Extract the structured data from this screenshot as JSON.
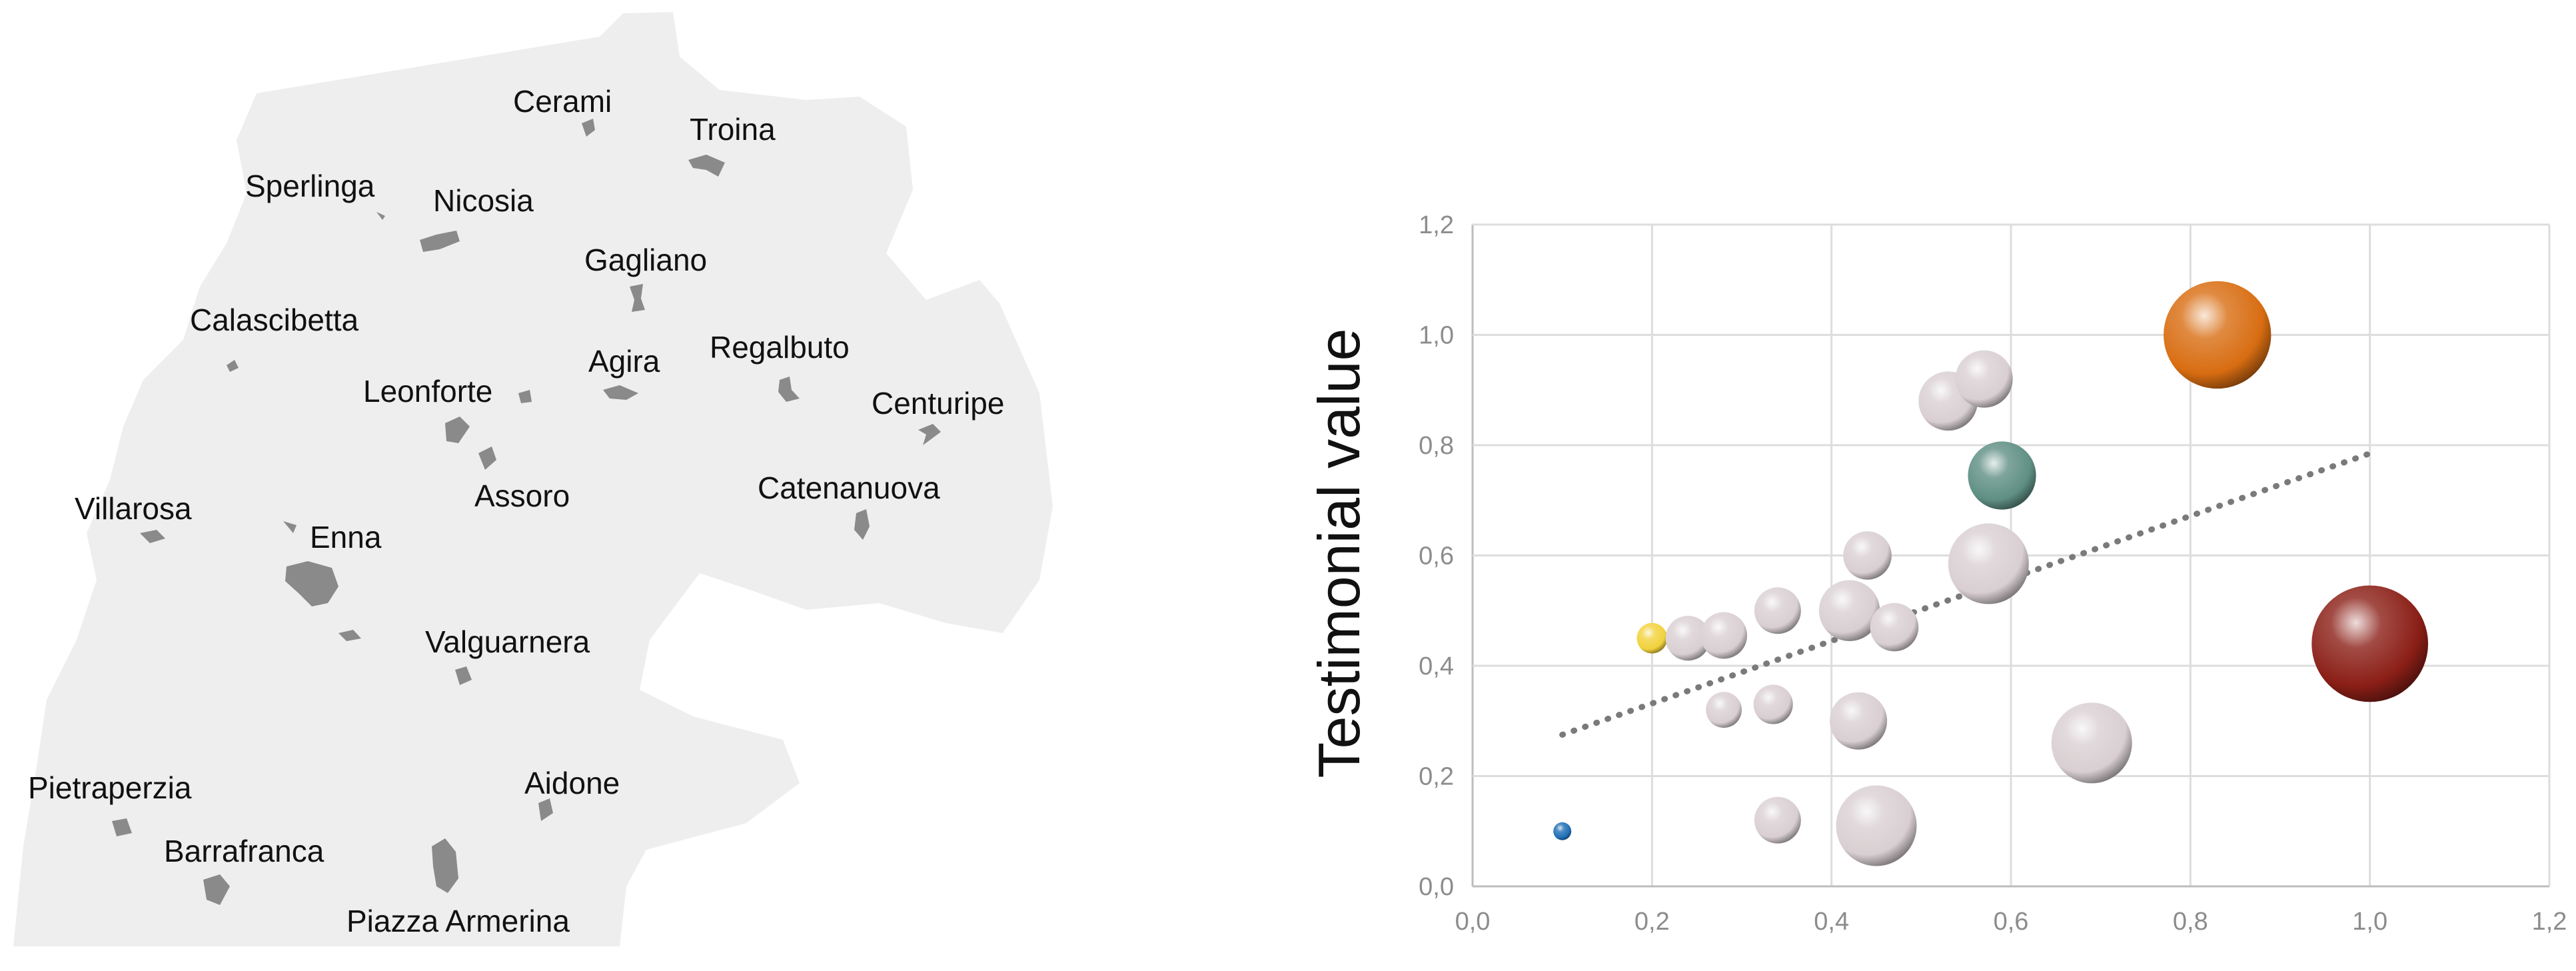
{
  "map": {
    "towns": [
      {
        "name": "Cerami"
      },
      {
        "name": "Troina"
      },
      {
        "name": "Sperlinga"
      },
      {
        "name": "Nicosia"
      },
      {
        "name": "Gagliano"
      },
      {
        "name": "Calascibetta"
      },
      {
        "name": "Agira"
      },
      {
        "name": "Regalbuto"
      },
      {
        "name": "Leonforte"
      },
      {
        "name": "Centuripe"
      },
      {
        "name": "Assoro"
      },
      {
        "name": "Catenanuova"
      },
      {
        "name": "Villarosa"
      },
      {
        "name": "Enna"
      },
      {
        "name": "Valguarnera"
      },
      {
        "name": "Pietraperzia"
      },
      {
        "name": "Aidone"
      },
      {
        "name": "Barrafranca"
      },
      {
        "name": "Piazza Armerina"
      }
    ],
    "colors": {
      "region": "#eeeeee",
      "settlement": "#8a8a8a"
    }
  },
  "chart_data": {
    "type": "bubble",
    "ylabel": "Testimonial value",
    "xlabel": "",
    "xlim": [
      0.0,
      1.2
    ],
    "ylim": [
      0.0,
      1.2
    ],
    "xticks": [
      "0,0",
      "0,2",
      "0,4",
      "0,6",
      "0,8",
      "1,0",
      "1,2"
    ],
    "yticks": [
      "0,0",
      "0,2",
      "0,4",
      "0,6",
      "0,8",
      "1,0",
      "1,2"
    ],
    "grid": true,
    "points": [
      {
        "x": 0.1,
        "y": 0.1,
        "size": 0.1,
        "color": "#1f6fb5"
      },
      {
        "x": 0.2,
        "y": 0.45,
        "size": 0.17,
        "color": "#f2d23c"
      },
      {
        "x": 0.24,
        "y": 0.45,
        "size": 0.25,
        "color": "#d9cfd2"
      },
      {
        "x": 0.28,
        "y": 0.455,
        "size": 0.26,
        "color": "#d9cfd2"
      },
      {
        "x": 0.28,
        "y": 0.32,
        "size": 0.2,
        "color": "#d9cfd2"
      },
      {
        "x": 0.335,
        "y": 0.33,
        "size": 0.22,
        "color": "#d9cfd2"
      },
      {
        "x": 0.34,
        "y": 0.5,
        "size": 0.26,
        "color": "#d9cfd2"
      },
      {
        "x": 0.34,
        "y": 0.12,
        "size": 0.26,
        "color": "#d9cfd2"
      },
      {
        "x": 0.42,
        "y": 0.5,
        "size": 0.34,
        "color": "#d9cfd2"
      },
      {
        "x": 0.43,
        "y": 0.3,
        "size": 0.32,
        "color": "#d9cfd2"
      },
      {
        "x": 0.44,
        "y": 0.6,
        "size": 0.27,
        "color": "#d9cfd2"
      },
      {
        "x": 0.47,
        "y": 0.47,
        "size": 0.27,
        "color": "#d9cfd2"
      },
      {
        "x": 0.45,
        "y": 0.11,
        "size": 0.45,
        "color": "#d9cfd2"
      },
      {
        "x": 0.53,
        "y": 0.88,
        "size": 0.33,
        "color": "#d9cfd2"
      },
      {
        "x": 0.57,
        "y": 0.92,
        "size": 0.32,
        "color": "#d9cfd2"
      },
      {
        "x": 0.575,
        "y": 0.585,
        "size": 0.45,
        "color": "#d9cfd2"
      },
      {
        "x": 0.59,
        "y": 0.745,
        "size": 0.38,
        "color": "#5f8f83"
      },
      {
        "x": 0.69,
        "y": 0.26,
        "size": 0.45,
        "color": "#d9cfd2"
      },
      {
        "x": 0.83,
        "y": 1.0,
        "size": 0.6,
        "color": "#d86d12"
      },
      {
        "x": 1.0,
        "y": 0.44,
        "size": 0.65,
        "color": "#8b1f17"
      }
    ],
    "trendline": {
      "x": [
        0.1,
        1.0
      ],
      "y": [
        0.275,
        0.785
      ],
      "style": "dotted",
      "color": "#7a7a7a"
    }
  }
}
